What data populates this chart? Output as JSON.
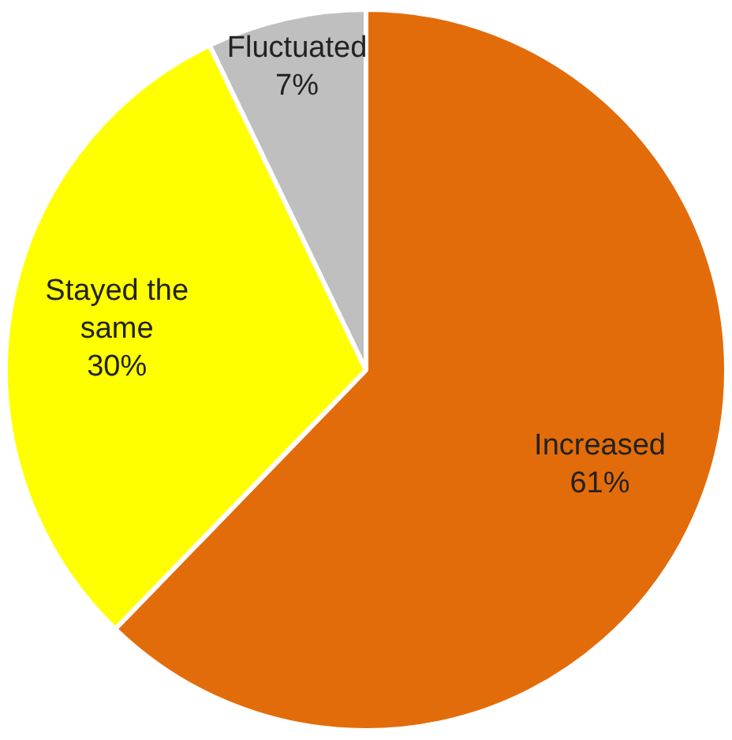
{
  "chart_data": {
    "type": "pie",
    "categories": [
      "Increased",
      "Stayed the same",
      "Fluctuated"
    ],
    "values": [
      61,
      30,
      7
    ],
    "colors": [
      "#e36c0a",
      "#ffff00",
      "#bfbfbf"
    ],
    "value_labels": [
      "61%",
      "30%",
      "7%"
    ],
    "legend": false
  }
}
